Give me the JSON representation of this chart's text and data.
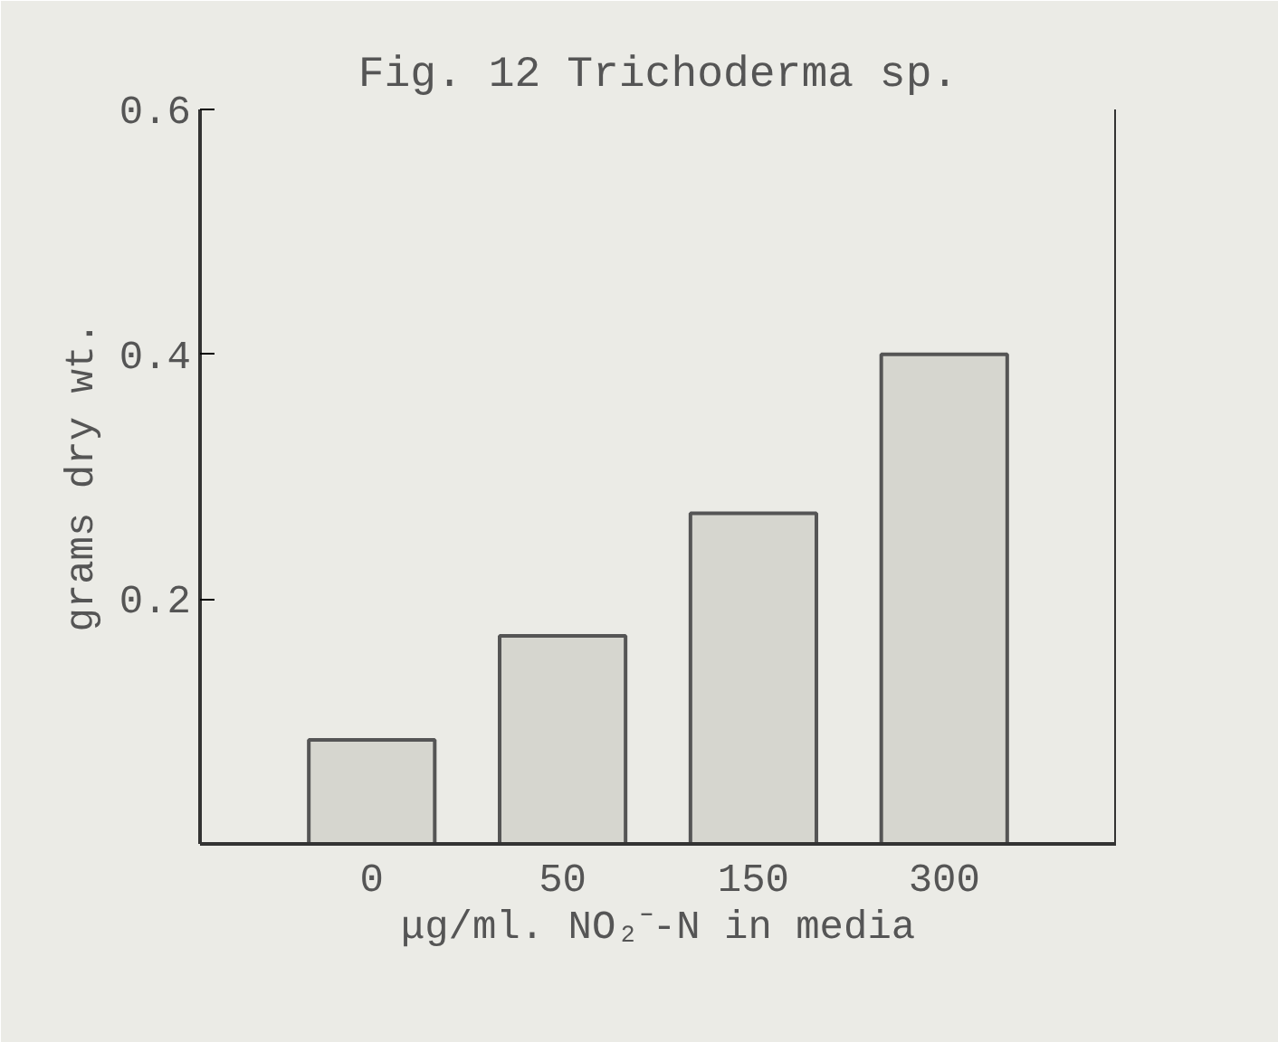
{
  "chart_data": {
    "type": "bar",
    "title": "Fig. 12 Trichoderma sp.",
    "xlabel": "μg/ml. NO₂⁻-N in media",
    "ylabel": "grams dry wt.",
    "categories": [
      "0",
      "50",
      "150",
      "300"
    ],
    "values": [
      0.085,
      0.17,
      0.27,
      0.4
    ],
    "color": "#d6d6cf",
    "ylim": [
      0,
      0.6
    ],
    "yticks": [
      {
        "value": 0.2,
        "label": "0.2"
      },
      {
        "value": 0.4,
        "label": "0.4"
      },
      {
        "value": 0.6,
        "label": "0.6"
      }
    ],
    "grid": false
  }
}
